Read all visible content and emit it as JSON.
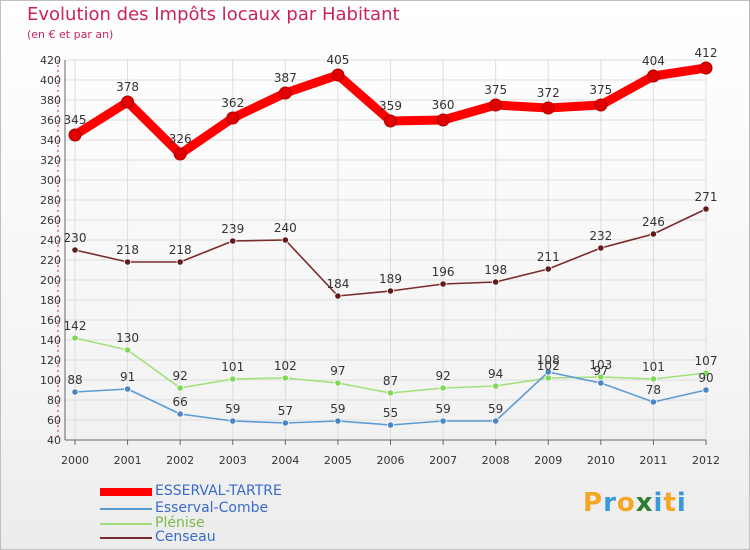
{
  "title": "Evolution des Impôts locaux par Habitant",
  "subtitle": "(en € et par an)",
  "logo": {
    "letters": [
      "P",
      "r",
      "o",
      "x",
      "i",
      "t",
      "i"
    ],
    "colors": [
      "#f5a623",
      "#3a9ad9",
      "#f5a623",
      "#2e7d32",
      "#3a9ad9",
      "#f5a623",
      "#3a9ad9"
    ]
  },
  "chart_data": {
    "type": "line",
    "title": "Evolution des Impôts locaux par Habitant",
    "ylabel": "(en € et par an)",
    "xlabel": "",
    "x": [
      "2000",
      "2001",
      "2002",
      "2003",
      "2004",
      "2005",
      "2006",
      "2007",
      "2008",
      "2009",
      "2010",
      "2011",
      "2012"
    ],
    "ylim": [
      40,
      420
    ],
    "yticks": [
      40,
      60,
      80,
      100,
      120,
      140,
      160,
      180,
      200,
      220,
      240,
      260,
      280,
      300,
      320,
      340,
      360,
      380,
      400,
      420
    ],
    "grid": true,
    "legend_position": "bottom-left",
    "series": [
      {
        "name": "ESSERVAL-TARTRE",
        "color": "#ff0000",
        "markerColor": "#e00000",
        "width": "thick",
        "values": [
          345,
          378,
          326,
          362,
          387,
          405,
          359,
          360,
          375,
          372,
          375,
          404,
          412
        ]
      },
      {
        "name": "Esserval-Combe",
        "color": "#5b9bd5",
        "markerColor": "#4a86c5",
        "width": "thin",
        "values": [
          88,
          91,
          66,
          59,
          57,
          59,
          55,
          59,
          59,
          108,
          97,
          78,
          90
        ]
      },
      {
        "name": "Plénise",
        "color": "#a3e07a",
        "markerColor": "#7ed957",
        "width": "thin",
        "values": [
          142,
          130,
          92,
          101,
          102,
          97,
          87,
          92,
          94,
          102,
          103,
          101,
          107
        ]
      },
      {
        "name": "Censeau",
        "color": "#7b2b2b",
        "markerColor": "#5e1c1c",
        "width": "thin",
        "values": [
          230,
          218,
          218,
          239,
          240,
          184,
          189,
          196,
          198,
          211,
          232,
          246,
          271
        ]
      }
    ]
  }
}
